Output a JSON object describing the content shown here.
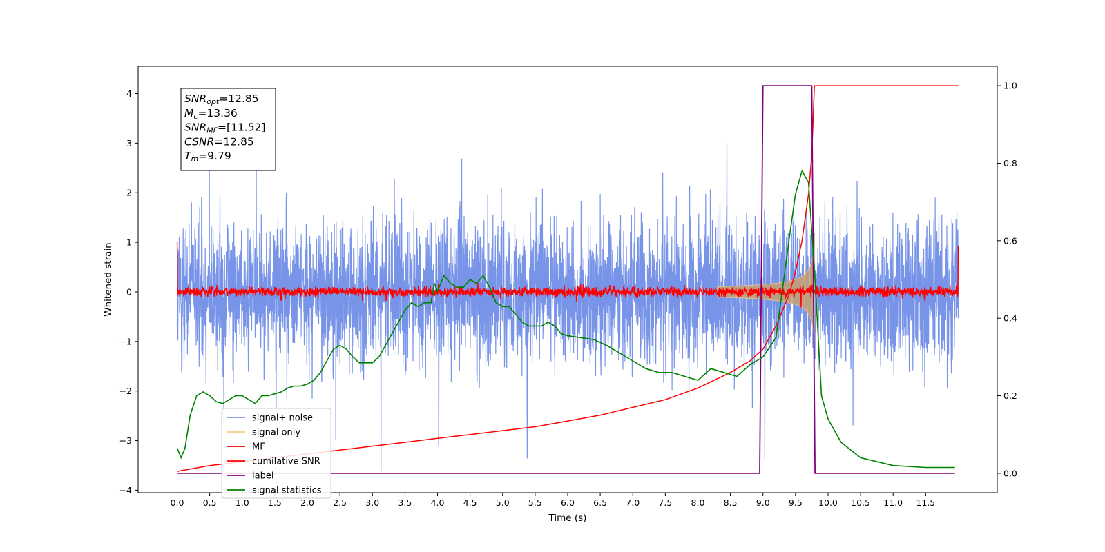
{
  "chart_data": {
    "type": "line",
    "xlabel": "Time (s)",
    "ylabel": "Whitened strain",
    "xlim": [
      -0.6,
      12.6
    ],
    "ylim_left": [
      -4.05,
      4.55
    ],
    "ylim_right": [
      -0.05,
      1.05
    ],
    "x_ticks": [
      "0.0",
      "0.5",
      "1.0",
      "1.5",
      "2.0",
      "2.5",
      "3.0",
      "3.5",
      "4.0",
      "4.5",
      "5.0",
      "5.5",
      "6.0",
      "6.5",
      "7.0",
      "7.5",
      "8.0",
      "8.5",
      "9.0",
      "9.5",
      "10.0",
      "10.5",
      "11.0",
      "11.5"
    ],
    "y_ticks_left": [
      "4",
      "3",
      "2",
      "1",
      "0",
      "−1",
      "−2",
      "−3",
      "−4"
    ],
    "y_ticks_right": [
      "1.0",
      "0.8",
      "0.6",
      "0.4",
      "0.2",
      "0.0"
    ],
    "info_box": {
      "lines": [
        {
          "sym": "SNR",
          "sub": "opt",
          "value": "=12.85"
        },
        {
          "sym": "M",
          "sub": "c",
          "value": "=13.36"
        },
        {
          "sym": "SNR",
          "sub": "MF",
          "value": "=[11.52]"
        },
        {
          "sym": "CSNR",
          "sub": "",
          "value": "=12.85"
        },
        {
          "sym": "T",
          "sub": "m",
          "value": "=9.79"
        }
      ]
    },
    "legend": {
      "placement": "lower-left",
      "entries": [
        {
          "label": "signal+ noise",
          "color": "#7894e8"
        },
        {
          "label": "signal only",
          "color": "#f5c98a"
        },
        {
          "label": "MF",
          "color": "#ff0000"
        },
        {
          "label": "cumilative SNR",
          "color": "#ff0000"
        },
        {
          "label": "label",
          "color": "#7f007f"
        },
        {
          "label": "signal statistics",
          "color": "#008000"
        }
      ]
    },
    "series": [
      {
        "name": "signal+ noise",
        "axis": "left",
        "kind": "noise",
        "x_range": [
          0.0,
          12.0
        ],
        "std": 0.9,
        "color": "#7894e8"
      },
      {
        "name": "signal only",
        "axis": "left",
        "kind": "chirp",
        "x_range": [
          8.3,
          9.79
        ],
        "peak_amplitude": 1.2,
        "color": "#f5c98a"
      },
      {
        "name": "MF",
        "axis": "left",
        "kind": "noise",
        "x_range": [
          0.0,
          12.0
        ],
        "std": 0.05,
        "edge_values": [
          1.0,
          0.92
        ],
        "color": "#ff0000"
      },
      {
        "name": "cumilative SNR",
        "axis": "right",
        "color": "#ff0000",
        "x": [
          0.0,
          0.5,
          1.0,
          1.5,
          2.0,
          2.5,
          3.0,
          3.5,
          4.0,
          4.5,
          5.0,
          5.5,
          6.0,
          6.5,
          7.0,
          7.5,
          8.0,
          8.5,
          8.8,
          9.0,
          9.2,
          9.4,
          9.5,
          9.6,
          9.7,
          9.75,
          9.79,
          10.0,
          11.0,
          12.0
        ],
        "y": [
          0.005,
          0.02,
          0.03,
          0.04,
          0.05,
          0.06,
          0.07,
          0.08,
          0.09,
          0.1,
          0.11,
          0.12,
          0.135,
          0.15,
          0.17,
          0.19,
          0.22,
          0.26,
          0.29,
          0.32,
          0.38,
          0.46,
          0.52,
          0.6,
          0.72,
          0.82,
          1.0,
          1.0,
          1.0,
          1.0
        ]
      },
      {
        "name": "label",
        "axis": "right",
        "color": "#7f007f",
        "x": [
          0.0,
          8.95,
          9.0,
          9.75,
          9.8,
          11.95
        ],
        "y": [
          0.0,
          0.0,
          1.0,
          1.0,
          0.0,
          0.0
        ]
      },
      {
        "name": "signal statistics",
        "axis": "right",
        "color": "#008000",
        "x": [
          0.0,
          0.06,
          0.12,
          0.2,
          0.3,
          0.4,
          0.5,
          0.6,
          0.7,
          0.8,
          0.9,
          1.0,
          1.1,
          1.2,
          1.3,
          1.4,
          1.5,
          1.6,
          1.7,
          1.8,
          1.9,
          2.0,
          2.1,
          2.2,
          2.3,
          2.4,
          2.5,
          2.6,
          2.7,
          2.8,
          2.9,
          3.0,
          3.1,
          3.2,
          3.3,
          3.4,
          3.5,
          3.6,
          3.7,
          3.8,
          3.9,
          3.95,
          4.0,
          4.1,
          4.15,
          4.2,
          4.3,
          4.4,
          4.5,
          4.6,
          4.7,
          4.8,
          4.9,
          5.0,
          5.1,
          5.2,
          5.3,
          5.4,
          5.5,
          5.6,
          5.7,
          5.8,
          5.9,
          6.0,
          6.2,
          6.4,
          6.6,
          6.8,
          7.0,
          7.2,
          7.4,
          7.6,
          7.8,
          8.0,
          8.2,
          8.4,
          8.6,
          8.8,
          9.0,
          9.2,
          9.4,
          9.5,
          9.6,
          9.7,
          9.8,
          9.9,
          10.0,
          10.2,
          10.5,
          11.0,
          11.5,
          11.95
        ],
        "y": [
          0.065,
          0.04,
          0.065,
          0.15,
          0.2,
          0.21,
          0.2,
          0.185,
          0.18,
          0.19,
          0.2,
          0.2,
          0.19,
          0.18,
          0.2,
          0.2,
          0.205,
          0.21,
          0.22,
          0.225,
          0.225,
          0.23,
          0.24,
          0.26,
          0.29,
          0.32,
          0.33,
          0.32,
          0.3,
          0.285,
          0.285,
          0.285,
          0.3,
          0.33,
          0.36,
          0.39,
          0.42,
          0.44,
          0.43,
          0.44,
          0.44,
          0.49,
          0.47,
          0.51,
          0.5,
          0.49,
          0.48,
          0.48,
          0.5,
          0.49,
          0.51,
          0.48,
          0.44,
          0.43,
          0.43,
          0.41,
          0.39,
          0.38,
          0.38,
          0.38,
          0.39,
          0.38,
          0.36,
          0.355,
          0.35,
          0.345,
          0.33,
          0.31,
          0.29,
          0.27,
          0.26,
          0.26,
          0.25,
          0.24,
          0.27,
          0.26,
          0.25,
          0.28,
          0.3,
          0.35,
          0.6,
          0.72,
          0.78,
          0.75,
          0.5,
          0.2,
          0.14,
          0.08,
          0.04,
          0.02,
          0.015,
          0.015
        ]
      }
    ]
  }
}
